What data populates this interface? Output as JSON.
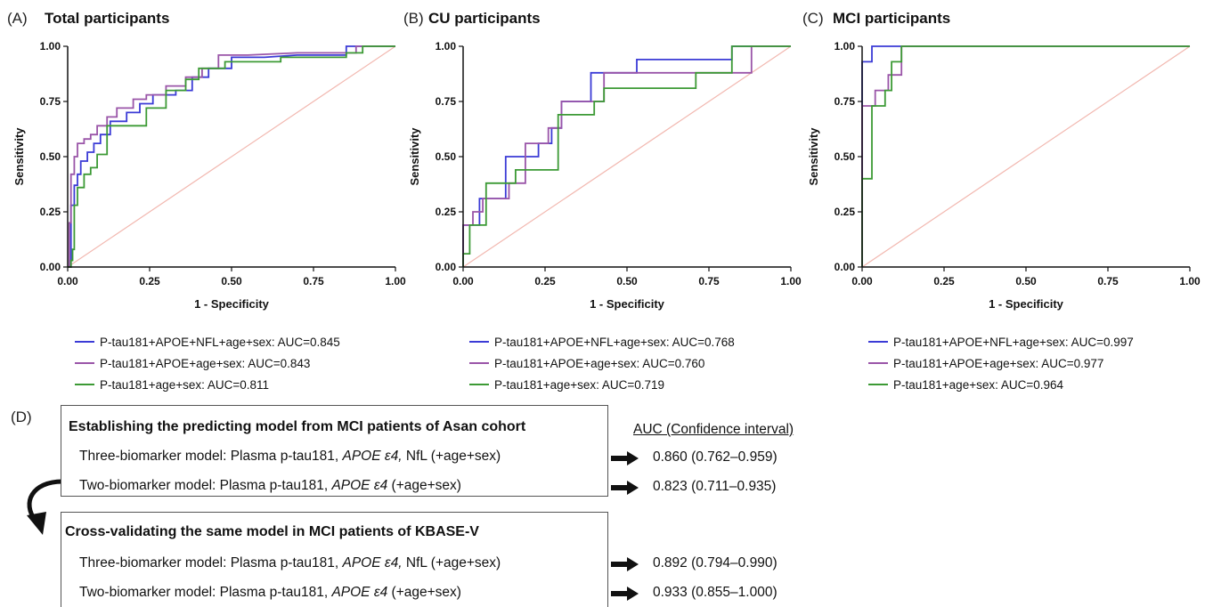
{
  "colors": {
    "three_model": "#3b3bd6",
    "two_model": "#9a55a8",
    "ptau_model": "#3c9a35",
    "reference": "#f2b8b0"
  },
  "chart_data": [
    {
      "type": "line",
      "letter": "(A)",
      "title": "Total participants",
      "xlabel": "1 - Specificity",
      "ylabel": "Sensitivity",
      "xlim": [
        0,
        1
      ],
      "ylim": [
        0,
        1
      ],
      "xticks": [
        "0.00",
        "0.25",
        "0.50",
        "0.75",
        "1.00"
      ],
      "yticks": [
        "0.00",
        "0.25",
        "0.50",
        "0.75",
        "1.00"
      ],
      "grid": false,
      "legend_position": "bottom",
      "series": [
        {
          "name": "P-tau181+APOE+NFL+age+sex: AUC=0.845",
          "color": "#3b3bd6",
          "x": [
            0,
            0.01,
            0.01,
            0.02,
            0.02,
            0.03,
            0.03,
            0.04,
            0.04,
            0.06,
            0.06,
            0.08,
            0.08,
            0.1,
            0.1,
            0.13,
            0.13,
            0.18,
            0.18,
            0.22,
            0.22,
            0.26,
            0.26,
            0.33,
            0.33,
            0.38,
            0.38,
            0.43,
            0.43,
            0.5,
            0.5,
            0.6,
            0.7,
            0.85,
            0.85,
            1.0
          ],
          "y": [
            0,
            0,
            0.28,
            0.28,
            0.37,
            0.37,
            0.42,
            0.42,
            0.48,
            0.48,
            0.52,
            0.52,
            0.56,
            0.56,
            0.6,
            0.6,
            0.66,
            0.66,
            0.7,
            0.7,
            0.74,
            0.74,
            0.78,
            0.78,
            0.8,
            0.8,
            0.86,
            0.86,
            0.9,
            0.9,
            0.95,
            0.95,
            0.96,
            0.96,
            1.0,
            1.0
          ]
        },
        {
          "name": "P-tau181+APOE+age+sex: AUC=0.843",
          "color": "#9a55a8",
          "x": [
            0,
            0.005,
            0.005,
            0.01,
            0.01,
            0.02,
            0.02,
            0.03,
            0.03,
            0.05,
            0.05,
            0.07,
            0.07,
            0.09,
            0.09,
            0.12,
            0.12,
            0.15,
            0.15,
            0.2,
            0.2,
            0.24,
            0.24,
            0.3,
            0.3,
            0.36,
            0.36,
            0.41,
            0.41,
            0.46,
            0.46,
            0.55,
            0.7,
            0.88,
            0.88,
            1.0
          ],
          "y": [
            0,
            0,
            0.2,
            0.2,
            0.42,
            0.42,
            0.5,
            0.5,
            0.56,
            0.56,
            0.58,
            0.58,
            0.6,
            0.6,
            0.64,
            0.64,
            0.68,
            0.68,
            0.72,
            0.72,
            0.76,
            0.76,
            0.78,
            0.78,
            0.82,
            0.82,
            0.86,
            0.86,
            0.9,
            0.9,
            0.96,
            0.96,
            0.97,
            0.97,
            1.0,
            1.0
          ]
        },
        {
          "name": "P-tau181+age+sex: AUC=0.811",
          "color": "#3c9a35",
          "x": [
            0,
            0.01,
            0.01,
            0.015,
            0.015,
            0.02,
            0.02,
            0.03,
            0.03,
            0.05,
            0.05,
            0.07,
            0.07,
            0.09,
            0.09,
            0.12,
            0.12,
            0.24,
            0.24,
            0.3,
            0.3,
            0.36,
            0.36,
            0.4,
            0.4,
            0.48,
            0.48,
            0.65,
            0.65,
            0.85,
            0.85,
            0.9,
            0.9,
            1.0
          ],
          "y": [
            0,
            0,
            0.03,
            0.03,
            0.08,
            0.08,
            0.28,
            0.28,
            0.36,
            0.36,
            0.42,
            0.42,
            0.45,
            0.45,
            0.51,
            0.51,
            0.64,
            0.64,
            0.72,
            0.72,
            0.8,
            0.8,
            0.85,
            0.85,
            0.9,
            0.9,
            0.93,
            0.93,
            0.95,
            0.95,
            0.97,
            0.97,
            1.0,
            1.0
          ]
        }
      ]
    },
    {
      "type": "line",
      "letter": "(B)",
      "title": "CU participants",
      "xlabel": "1 - Specificity",
      "ylabel": "Sensitivity",
      "xlim": [
        0,
        1
      ],
      "ylim": [
        0,
        1
      ],
      "xticks": [
        "0.00",
        "0.25",
        "0.50",
        "0.75",
        "1.00"
      ],
      "yticks": [
        "0.00",
        "0.25",
        "0.50",
        "0.75",
        "1.00"
      ],
      "grid": false,
      "legend_position": "bottom",
      "series": [
        {
          "name": "P-tau181+APOE+NFL+age+sex: AUC=0.768",
          "color": "#3b3bd6",
          "x": [
            0,
            0.0,
            0.05,
            0.05,
            0.08,
            0.08,
            0.13,
            0.13,
            0.23,
            0.23,
            0.27,
            0.27,
            0.3,
            0.3,
            0.39,
            0.39,
            0.53,
            0.53,
            0.82,
            0.82,
            1.0
          ],
          "y": [
            0,
            0.19,
            0.19,
            0.31,
            0.31,
            0.31,
            0.31,
            0.5,
            0.5,
            0.56,
            0.56,
            0.63,
            0.63,
            0.75,
            0.75,
            0.88,
            0.88,
            0.94,
            0.94,
            1.0,
            1.0
          ]
        },
        {
          "name": "P-tau181+APOE+age+sex: AUC=0.760",
          "color": "#9a55a8",
          "x": [
            0,
            0.0,
            0.03,
            0.03,
            0.06,
            0.06,
            0.14,
            0.14,
            0.19,
            0.19,
            0.26,
            0.26,
            0.3,
            0.3,
            0.43,
            0.43,
            0.55,
            0.55,
            0.88,
            0.88,
            1.0
          ],
          "y": [
            0,
            0.19,
            0.19,
            0.25,
            0.25,
            0.31,
            0.31,
            0.38,
            0.38,
            0.56,
            0.56,
            0.63,
            0.63,
            0.75,
            0.75,
            0.88,
            0.88,
            0.88,
            0.88,
            1.0,
            1.0
          ]
        },
        {
          "name": "P-tau181+age+sex: AUC=0.719",
          "color": "#3c9a35",
          "x": [
            0,
            0.0,
            0.02,
            0.02,
            0.07,
            0.07,
            0.16,
            0.16,
            0.29,
            0.29,
            0.4,
            0.4,
            0.43,
            0.43,
            0.71,
            0.71,
            0.82,
            0.82,
            1.0
          ],
          "y": [
            0,
            0.06,
            0.06,
            0.19,
            0.19,
            0.38,
            0.38,
            0.44,
            0.44,
            0.69,
            0.69,
            0.75,
            0.75,
            0.81,
            0.81,
            0.88,
            0.88,
            1.0,
            1.0
          ]
        }
      ]
    },
    {
      "type": "line",
      "letter": "(C)",
      "title": "MCI participants",
      "xlabel": "1 - Specificity",
      "ylabel": "Sensitivity",
      "xlim": [
        0,
        1
      ],
      "ylim": [
        0,
        1
      ],
      "xticks": [
        "0.00",
        "0.25",
        "0.50",
        "0.75",
        "1.00"
      ],
      "yticks": [
        "0.00",
        "0.25",
        "0.50",
        "0.75",
        "1.00"
      ],
      "grid": false,
      "legend_position": "bottom",
      "series": [
        {
          "name": "P-tau181+APOE+NFL+age+sex: AUC=0.997",
          "color": "#3b3bd6",
          "x": [
            0,
            0.0,
            0.03,
            0.03,
            1.0
          ],
          "y": [
            0,
            0.93,
            0.93,
            1.0,
            1.0
          ]
        },
        {
          "name": "P-tau181+APOE+age+sex: AUC=0.977",
          "color": "#9a55a8",
          "x": [
            0,
            0.0,
            0.04,
            0.04,
            0.08,
            0.08,
            0.12,
            0.12,
            1.0
          ],
          "y": [
            0,
            0.73,
            0.73,
            0.8,
            0.8,
            0.87,
            0.87,
            1.0,
            1.0
          ]
        },
        {
          "name": "P-tau181+age+sex: AUC=0.964",
          "color": "#3c9a35",
          "x": [
            0,
            0.0,
            0.03,
            0.03,
            0.07,
            0.07,
            0.09,
            0.09,
            0.12,
            0.12,
            1.0
          ],
          "y": [
            0,
            0.4,
            0.4,
            0.73,
            0.73,
            0.8,
            0.8,
            0.93,
            0.93,
            1.0,
            1.0
          ]
        }
      ]
    }
  ],
  "section_d": {
    "letter": "(D)",
    "box1": {
      "title": "Establishing the predicting model from MCI patients of Asan cohort",
      "line1_pre": "Three-biomarker model: Plasma p-tau181, ",
      "line1_italic": "APOE ε4,",
      "line1_post": " NfL (+age+sex)",
      "line2_pre": "Two-biomarker model: Plasma p-tau181, ",
      "line2_italic": "APOE ε4",
      "line2_post": " (+age+sex)"
    },
    "box2": {
      "title": "Cross-validating the same model in MCI patients of KBASE-V",
      "line1_pre": "Three-biomarker model: Plasma p-tau181, ",
      "line1_italic": "APOE ε4,",
      "line1_post": " NfL (+age+sex)",
      "line2_pre": "Two-biomarker model: Plasma p-tau181, ",
      "line2_italic": "APOE ε4",
      "line2_post": " (+age+sex)"
    },
    "auc_header": "AUC (Confidence interval)",
    "auc_values": [
      "0.860 (0.762–0.959)",
      "0.823 (0.711–0.935)",
      "0.892 (0.794–0.990)",
      "0.933 (0.855–1.000)"
    ]
  }
}
